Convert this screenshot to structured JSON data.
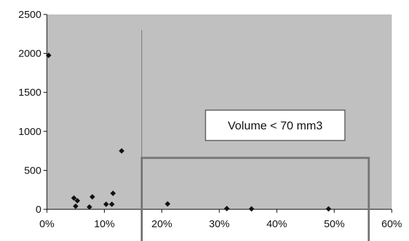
{
  "chart_data": {
    "type": "scatter",
    "title": "",
    "xlabel": "",
    "ylabel": "",
    "xlim": [
      0,
      60
    ],
    "ylim": [
      0,
      2500
    ],
    "x_ticks": [
      0,
      10,
      20,
      30,
      40,
      50,
      60
    ],
    "x_tick_labels": [
      "0%",
      "10%",
      "20%",
      "30%",
      "40%",
      "50%",
      "60%"
    ],
    "y_ticks": [
      0,
      500,
      1000,
      1500,
      2000,
      2500
    ],
    "y_tick_labels": [
      "0",
      "500",
      "1000",
      "1500",
      "2000",
      "2500"
    ],
    "grid": false,
    "plot_background": "#c0c0c0",
    "marker_color": "#111111",
    "marker": "diamond",
    "points": [
      {
        "x": 0.3,
        "y": 1975
      },
      {
        "x": 4.7,
        "y": 145
      },
      {
        "x": 5.0,
        "y": 40
      },
      {
        "x": 5.3,
        "y": 110
      },
      {
        "x": 7.4,
        "y": 30
      },
      {
        "x": 7.9,
        "y": 160
      },
      {
        "x": 10.3,
        "y": 65
      },
      {
        "x": 11.3,
        "y": 65
      },
      {
        "x": 11.5,
        "y": 205
      },
      {
        "x": 13.0,
        "y": 750
      },
      {
        "x": 21.0,
        "y": 70
      },
      {
        "x": 31.3,
        "y": 10
      },
      {
        "x": 35.6,
        "y": 5
      },
      {
        "x": 49.0,
        "y": 5
      }
    ],
    "reference_line": {
      "x": 16.5,
      "y_top": 2300
    },
    "region": {
      "x0": 16.5,
      "x1": 56.0,
      "y_top": 660
    },
    "annotation": "Volume < 70 mm3"
  }
}
